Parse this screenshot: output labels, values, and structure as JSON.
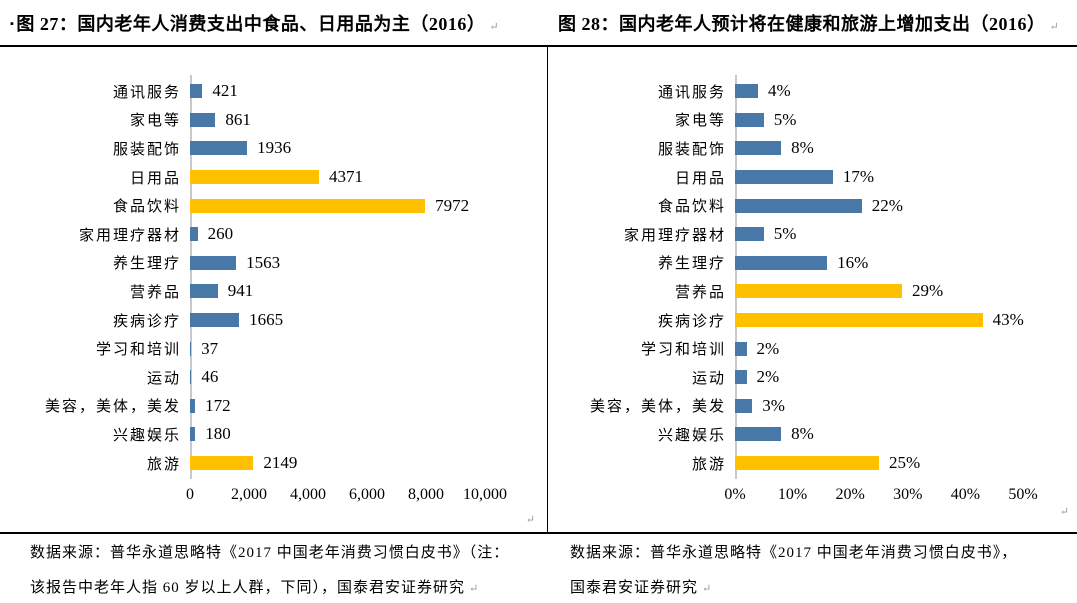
{
  "page": {
    "bullet": "▪",
    "return_mark": "↵",
    "titles": {
      "left": "图 27：国内老年人消费支出中食品、日用品为主（2016）",
      "right": "图 28：国内老年人预计将在健康和旅游上增加支出（2016）"
    },
    "notes": {
      "left_line1": "数据来源：普华永道思略特《2017 中国老年消费习惯白皮书》（注：",
      "left_line2": "该报告中老年人指 60 岁以上人群，下同），国泰君安证券研究",
      "right_line1": "数据来源：普华永道思略特《2017 中国老年消费习惯白皮书》，",
      "right_line2": "国泰君安证券研究"
    }
  },
  "colors": {
    "blue": "#4878A8",
    "yellow": "#FFC000",
    "axis": "#C9C9C9"
  },
  "chart_data": [
    {
      "type": "bar",
      "orientation": "horizontal",
      "title": "图 27：国内老年人消费支出中食品、日用品为主（2016）",
      "categories": [
        "通讯服务",
        "家电等",
        "服装配饰",
        "日用品",
        "食品饮料",
        "家用理疗器材",
        "养生理疗",
        "营养品",
        "疾病诊疗",
        "学习和培训",
        "运动",
        "美容，美体，美发",
        "兴趣娱乐",
        "旅游"
      ],
      "values": [
        421,
        861,
        1936,
        4371,
        7972,
        260,
        1563,
        941,
        1665,
        37,
        46,
        172,
        180,
        2149
      ],
      "data_labels": [
        "421",
        "861",
        "1936",
        "4371",
        "7972",
        "260",
        "1563",
        "941",
        "1665",
        "37",
        "46",
        "172",
        "180",
        "2149"
      ],
      "bar_colors": [
        "blue",
        "blue",
        "blue",
        "yellow",
        "yellow",
        "blue",
        "blue",
        "blue",
        "blue",
        "blue",
        "blue",
        "blue",
        "blue",
        "yellow"
      ],
      "xlim": [
        0,
        10000
      ],
      "xticks": [
        "0",
        "2,000",
        "4,000",
        "6,000",
        "8,000",
        "10,000"
      ],
      "grid": false,
      "legend": false
    },
    {
      "type": "bar",
      "orientation": "horizontal",
      "title": "图 28：国内老年人预计将在健康和旅游上增加支出（2016）",
      "categories": [
        "通讯服务",
        "家电等",
        "服装配饰",
        "日用品",
        "食品饮料",
        "家用理疗器材",
        "养生理疗",
        "营养品",
        "疾病诊疗",
        "学习和培训",
        "运动",
        "美容，美体，美发",
        "兴趣娱乐",
        "旅游"
      ],
      "values": [
        4,
        5,
        8,
        17,
        22,
        5,
        16,
        29,
        43,
        2,
        2,
        3,
        8,
        25
      ],
      "data_labels": [
        "4%",
        "5%",
        "8%",
        "17%",
        "22%",
        "5%",
        "16%",
        "29%",
        "43%",
        "2%",
        "2%",
        "3%",
        "8%",
        "25%"
      ],
      "bar_colors": [
        "blue",
        "blue",
        "blue",
        "blue",
        "blue",
        "blue",
        "blue",
        "yellow",
        "yellow",
        "blue",
        "blue",
        "blue",
        "blue",
        "yellow"
      ],
      "xlim": [
        0,
        50
      ],
      "xticks": [
        "0%",
        "10%",
        "20%",
        "30%",
        "40%",
        "50%"
      ],
      "grid": false,
      "legend": false
    }
  ]
}
